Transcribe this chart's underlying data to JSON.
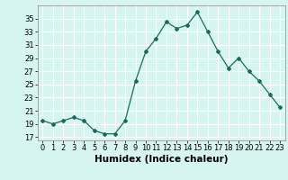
{
  "x": [
    0,
    1,
    2,
    3,
    4,
    5,
    6,
    7,
    8,
    9,
    10,
    11,
    12,
    13,
    14,
    15,
    16,
    17,
    18,
    19,
    20,
    21,
    22,
    23
  ],
  "y": [
    19.5,
    19.0,
    19.5,
    20.0,
    19.5,
    18.0,
    17.5,
    17.5,
    19.5,
    25.5,
    30.0,
    32.0,
    34.5,
    33.5,
    34.0,
    36.0,
    33.0,
    30.0,
    27.5,
    29.0,
    27.0,
    25.5,
    23.5,
    21.5
  ],
  "line_color": "#1a6b5e",
  "marker": "D",
  "marker_size": 2,
  "bg_color": "#d6f5f0",
  "grid_color": "#ffffff",
  "xlabel": "Humidex (Indice chaleur)",
  "xlabel_fontsize": 7.5,
  "tick_fontsize": 6,
  "yticks": [
    17,
    19,
    21,
    23,
    25,
    27,
    29,
    31,
    33,
    35
  ],
  "xticks": [
    0,
    1,
    2,
    3,
    4,
    5,
    6,
    7,
    8,
    9,
    10,
    11,
    12,
    13,
    14,
    15,
    16,
    17,
    18,
    19,
    20,
    21,
    22,
    23
  ],
  "xlim": [
    -0.5,
    23.5
  ],
  "ylim": [
    16.5,
    37
  ]
}
